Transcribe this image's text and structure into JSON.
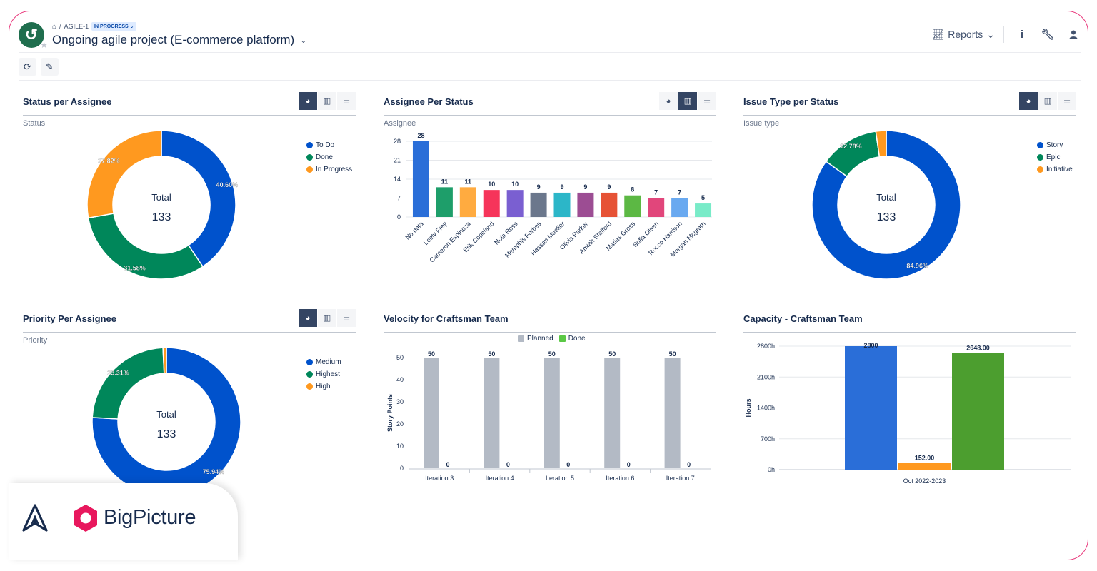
{
  "header": {
    "breadcrumb_key": "AGILE-1",
    "status_badge": "IN PROGRESS",
    "title": "Ongoing agile project (E-commerce platform)",
    "reports_label": "Reports"
  },
  "panels": {
    "status_per_assignee": {
      "title": "Status per Assignee",
      "subtitle": "Status",
      "center_label": "Total",
      "center_value": "133",
      "legend": [
        {
          "label": "To Do",
          "color": "#0052cc"
        },
        {
          "label": "Done",
          "color": "#00875a"
        },
        {
          "label": "In Progress",
          "color": "#ff991f"
        }
      ]
    },
    "assignee_per_status": {
      "title": "Assignee Per Status",
      "subtitle": "Assignee"
    },
    "issue_type_per_status": {
      "title": "Issue Type per Status",
      "subtitle": "Issue type",
      "center_label": "Total",
      "center_value": "133",
      "legend": [
        {
          "label": "Story",
          "color": "#0052cc"
        },
        {
          "label": "Epic",
          "color": "#00875a"
        },
        {
          "label": "Initiative",
          "color": "#ff991f"
        }
      ]
    },
    "priority_per_assignee": {
      "title": "Priority Per Assignee",
      "subtitle": "Priority",
      "center_label": "Total",
      "center_value": "133",
      "legend": [
        {
          "label": "Medium",
          "color": "#0052cc"
        },
        {
          "label": "Highest",
          "color": "#00875a"
        },
        {
          "label": "High",
          "color": "#ff991f"
        }
      ]
    },
    "velocity": {
      "title": "Velocity for Craftsman Team",
      "legend": [
        {
          "label": "Planned",
          "color": "#b3bac5"
        },
        {
          "label": "Done",
          "color": "#5ac845"
        }
      ]
    },
    "capacity": {
      "title": "Capacity - Craftsman Team"
    }
  },
  "brand": {
    "name": "BigPicture"
  },
  "chart_data": [
    {
      "type": "pie",
      "donut": true,
      "labels": [
        "To Do",
        "Done",
        "In Progress"
      ],
      "values": [
        40.6,
        31.58,
        27.82
      ],
      "data_labels": [
        "40.60%",
        "31.58%",
        "27.82%"
      ],
      "colors": [
        "#0052cc",
        "#00875a",
        "#ff991f"
      ],
      "total": 133
    },
    {
      "type": "bar",
      "categories": [
        "No data",
        "Leely Frey",
        "Cameron Espinoza",
        "Erik Copeland",
        "Nola Ross",
        "Memphis Forbes",
        "Hassan Mueller",
        "Olivia Parker",
        "Amiah Stafford",
        "Matias Gross",
        "Sofia Olsen",
        "Rocco Harrison",
        "Morgan Mcgrath"
      ],
      "values": [
        28,
        11,
        11,
        10,
        10,
        9,
        9,
        9,
        9,
        8,
        7,
        7,
        5
      ],
      "colors": [
        "#2a6ed8",
        "#1e9e6a",
        "#ffab40",
        "#f6345a",
        "#7a5fd1",
        "#6b778c",
        "#2cb6c8",
        "#9c4d93",
        "#e65235",
        "#5cb844",
        "#e1467b",
        "#69a9f0",
        "#79ebc8"
      ],
      "yticks": [
        0,
        7,
        14,
        21,
        28
      ],
      "ylim": [
        0,
        28
      ]
    },
    {
      "type": "pie",
      "donut": true,
      "labels": [
        "Story",
        "Epic",
        "Initiative"
      ],
      "values": [
        84.96,
        12.78,
        2.26
      ],
      "data_labels": [
        "84.96%",
        "12.78%",
        ""
      ],
      "colors": [
        "#0052cc",
        "#00875a",
        "#ff991f"
      ],
      "total": 133
    },
    {
      "type": "pie",
      "donut": true,
      "labels": [
        "Medium",
        "Highest",
        "High"
      ],
      "values": [
        75.94,
        23.31,
        0.75
      ],
      "data_labels": [
        "75.94%",
        "23.31%",
        ""
      ],
      "colors": [
        "#0052cc",
        "#00875a",
        "#ff991f"
      ],
      "total": 133
    },
    {
      "type": "bar",
      "categories": [
        "Iteration 3",
        "Iteration 4",
        "Iteration 5",
        "Iteration 6",
        "Iteration 7"
      ],
      "series": [
        {
          "name": "Planned",
          "values": [
            50,
            50,
            50,
            50,
            50
          ],
          "color": "#b3bac5"
        },
        {
          "name": "Done",
          "values": [
            0,
            0,
            0,
            0,
            0
          ],
          "color": "#5ac845"
        }
      ],
      "ylabel": "Story Points",
      "yticks": [
        0,
        10,
        20,
        30,
        40,
        50
      ],
      "ylim": [
        0,
        50
      ]
    },
    {
      "type": "bar",
      "categories": [
        "Oct 2022-2023"
      ],
      "series": [
        {
          "values": [
            2800
          ],
          "color": "#2a6ed8",
          "label": "2800"
        },
        {
          "values": [
            152
          ],
          "color": "#ff991f",
          "label": "152.00"
        },
        {
          "values": [
            2648
          ],
          "color": "#4c9e2f",
          "label": "2648.00"
        }
      ],
      "ylabel": "Hours",
      "yticks": [
        "0h",
        "700h",
        "1400h",
        "2100h",
        "2800h"
      ],
      "ylim": [
        0,
        2800
      ]
    }
  ]
}
